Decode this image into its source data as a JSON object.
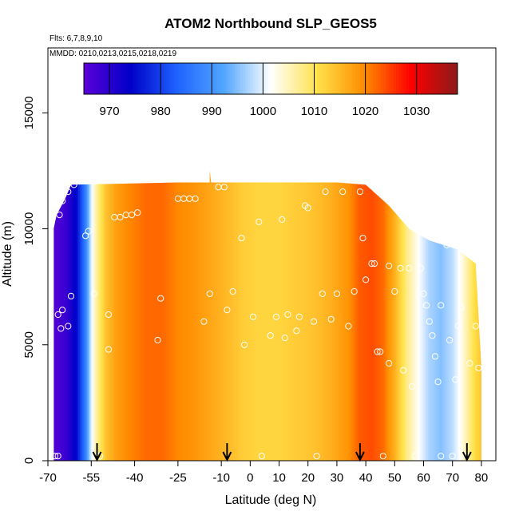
{
  "chart_data": {
    "type": "heatmap",
    "title": "ATOM2 Northbound SLP_GEOS5",
    "flights_note": "Flts: 6,7,8,9,10",
    "dates_note": "MMDD: 0210,0213,0215,0218,0219",
    "xlabel": "Latitude (deg N)",
    "ylabel": "Altitude (m)",
    "xlim": [
      -70,
      85
    ],
    "ylim": [
      0,
      17800
    ],
    "xticks": [
      -70,
      -55,
      -40,
      -25,
      -10,
      0,
      10,
      20,
      30,
      40,
      50,
      60,
      70,
      80
    ],
    "x_ticklabels": [
      "-70",
      "-55",
      "-40",
      "-25",
      "-10",
      "0",
      "10",
      "20",
      "30",
      "40",
      "50",
      "60",
      "70",
      "80"
    ],
    "yticks": [
      0,
      5000,
      10000,
      15000
    ],
    "y_ticklabels": [
      "0",
      "5000",
      "10000",
      "15000"
    ],
    "colorbar": {
      "min": 965,
      "max": 1038,
      "ticks": [
        970,
        980,
        990,
        1000,
        1010,
        1020,
        1030
      ],
      "tick_labels": [
        "970",
        "980",
        "990",
        "1000",
        "1010",
        "1020",
        "1030"
      ],
      "colors": [
        "#5b00d8",
        "#0000c8",
        "#1f63ff",
        "#52a6ff",
        "#ffffff",
        "#ffe24a",
        "#ff8c00",
        "#ff0000",
        "#8b1a1a"
      ]
    },
    "slp_profile": [
      {
        "lat": -68,
        "slp": 966
      },
      {
        "lat": -64,
        "slp": 968
      },
      {
        "lat": -60,
        "slp": 975
      },
      {
        "lat": -57,
        "slp": 987
      },
      {
        "lat": -55,
        "slp": 1000
      },
      {
        "lat": -53,
        "slp": 1007
      },
      {
        "lat": -50,
        "slp": 1014
      },
      {
        "lat": -46,
        "slp": 1018
      },
      {
        "lat": -42,
        "slp": 1020
      },
      {
        "lat": -36,
        "slp": 1022
      },
      {
        "lat": -30,
        "slp": 1022
      },
      {
        "lat": -25,
        "slp": 1020
      },
      {
        "lat": -20,
        "slp": 1019
      },
      {
        "lat": -14,
        "slp": 1017
      },
      {
        "lat": -8,
        "slp": 1015
      },
      {
        "lat": -3,
        "slp": 1013
      },
      {
        "lat": 3,
        "slp": 1012
      },
      {
        "lat": 10,
        "slp": 1012
      },
      {
        "lat": 16,
        "slp": 1013
      },
      {
        "lat": 22,
        "slp": 1014
      },
      {
        "lat": 28,
        "slp": 1016
      },
      {
        "lat": 34,
        "slp": 1019
      },
      {
        "lat": 38,
        "slp": 1023
      },
      {
        "lat": 42,
        "slp": 1024
      },
      {
        "lat": 46,
        "slp": 1022
      },
      {
        "lat": 50,
        "slp": 1016
      },
      {
        "lat": 54,
        "slp": 1008
      },
      {
        "lat": 58,
        "slp": 1002
      },
      {
        "lat": 62,
        "slp": 997
      },
      {
        "lat": 66,
        "slp": 995
      },
      {
        "lat": 70,
        "slp": 998
      },
      {
        "lat": 74,
        "slp": 1004
      },
      {
        "lat": 77,
        "slp": 1010
      },
      {
        "lat": 80,
        "slp": 1014
      }
    ],
    "data_envelope": [
      {
        "lat": -68,
        "top": 10000
      },
      {
        "lat": -67,
        "top": 10600
      },
      {
        "lat": -64,
        "top": 11300
      },
      {
        "lat": -62,
        "top": 11900
      },
      {
        "lat": -25,
        "top": 12000
      },
      {
        "lat": -14,
        "top": 12000
      },
      {
        "lat": -14,
        "top": 12500
      },
      {
        "lat": -13.5,
        "top": 12000
      },
      {
        "lat": 30,
        "top": 12000
      },
      {
        "lat": 40,
        "top": 11900
      },
      {
        "lat": 48,
        "top": 11000
      },
      {
        "lat": 55,
        "top": 10000
      },
      {
        "lat": 62,
        "top": 9500
      },
      {
        "lat": 72,
        "top": 9100
      },
      {
        "lat": 78,
        "top": 8500
      },
      {
        "lat": 80,
        "top": 4000
      },
      {
        "lat": 80,
        "top": 0
      }
    ],
    "flight_points": [
      [
        -67.5,
        200
      ],
      [
        -66.5,
        200
      ],
      [
        -66.5,
        6300
      ],
      [
        -65.5,
        5700
      ],
      [
        -65,
        6500
      ],
      [
        -63,
        5800
      ],
      [
        -62,
        7100
      ],
      [
        -66,
        10600
      ],
      [
        -65,
        11200
      ],
      [
        -63,
        11600
      ],
      [
        -61,
        11900
      ],
      [
        -57,
        9700
      ],
      [
        -56,
        9900
      ],
      [
        -52,
        200
      ],
      [
        -54,
        7200
      ],
      [
        -49,
        6300
      ],
      [
        -49,
        4800
      ],
      [
        -47,
        10500
      ],
      [
        -45,
        10500
      ],
      [
        -43,
        10600
      ],
      [
        -41,
        10600
      ],
      [
        -39,
        10700
      ],
      [
        -32,
        5200
      ],
      [
        -31,
        7000
      ],
      [
        -25,
        11300
      ],
      [
        -23,
        11300
      ],
      [
        -21,
        11300
      ],
      [
        -19,
        11300
      ],
      [
        -16,
        6000
      ],
      [
        -14,
        7200
      ],
      [
        -11,
        11800
      ],
      [
        -9,
        11800
      ],
      [
        -8,
        6500
      ],
      [
        -6,
        7300
      ],
      [
        -3,
        9600
      ],
      [
        -2,
        5000
      ],
      [
        1,
        6200
      ],
      [
        3,
        10300
      ],
      [
        4,
        200
      ],
      [
        7,
        5400
      ],
      [
        9,
        6200
      ],
      [
        11,
        10400
      ],
      [
        12,
        5300
      ],
      [
        13,
        6300
      ],
      [
        16,
        5600
      ],
      [
        17,
        6200
      ],
      [
        19,
        11000
      ],
      [
        20,
        10900
      ],
      [
        22,
        6000
      ],
      [
        23,
        200
      ],
      [
        25,
        7200
      ],
      [
        26,
        11600
      ],
      [
        28,
        6100
      ],
      [
        30,
        7200
      ],
      [
        32,
        11600
      ],
      [
        34,
        5800
      ],
      [
        36,
        7300
      ],
      [
        38,
        11600
      ],
      [
        39,
        9600
      ],
      [
        40,
        7800
      ],
      [
        42,
        8500
      ],
      [
        43,
        8500
      ],
      [
        44,
        4700
      ],
      [
        45,
        4700
      ],
      [
        46,
        200
      ],
      [
        48,
        4200
      ],
      [
        48,
        8400
      ],
      [
        50,
        7300
      ],
      [
        52,
        8300
      ],
      [
        53,
        3900
      ],
      [
        55,
        8300
      ],
      [
        56,
        3200
      ],
      [
        57,
        200
      ],
      [
        59,
        8300
      ],
      [
        60,
        7200
      ],
      [
        61,
        6700
      ],
      [
        62,
        6000
      ],
      [
        63,
        5400
      ],
      [
        64,
        4500
      ],
      [
        65,
        3400
      ],
      [
        66,
        200
      ],
      [
        66,
        6700
      ],
      [
        68,
        9300
      ],
      [
        69,
        5200
      ],
      [
        70,
        200
      ],
      [
        71,
        3500
      ],
      [
        72,
        5800
      ],
      [
        73,
        6600
      ],
      [
        74,
        9200
      ],
      [
        75,
        200
      ],
      [
        76,
        4200
      ],
      [
        78,
        5800
      ],
      [
        79,
        4000
      ]
    ],
    "arrows_lat": [
      -53,
      -8,
      38,
      75
    ]
  }
}
